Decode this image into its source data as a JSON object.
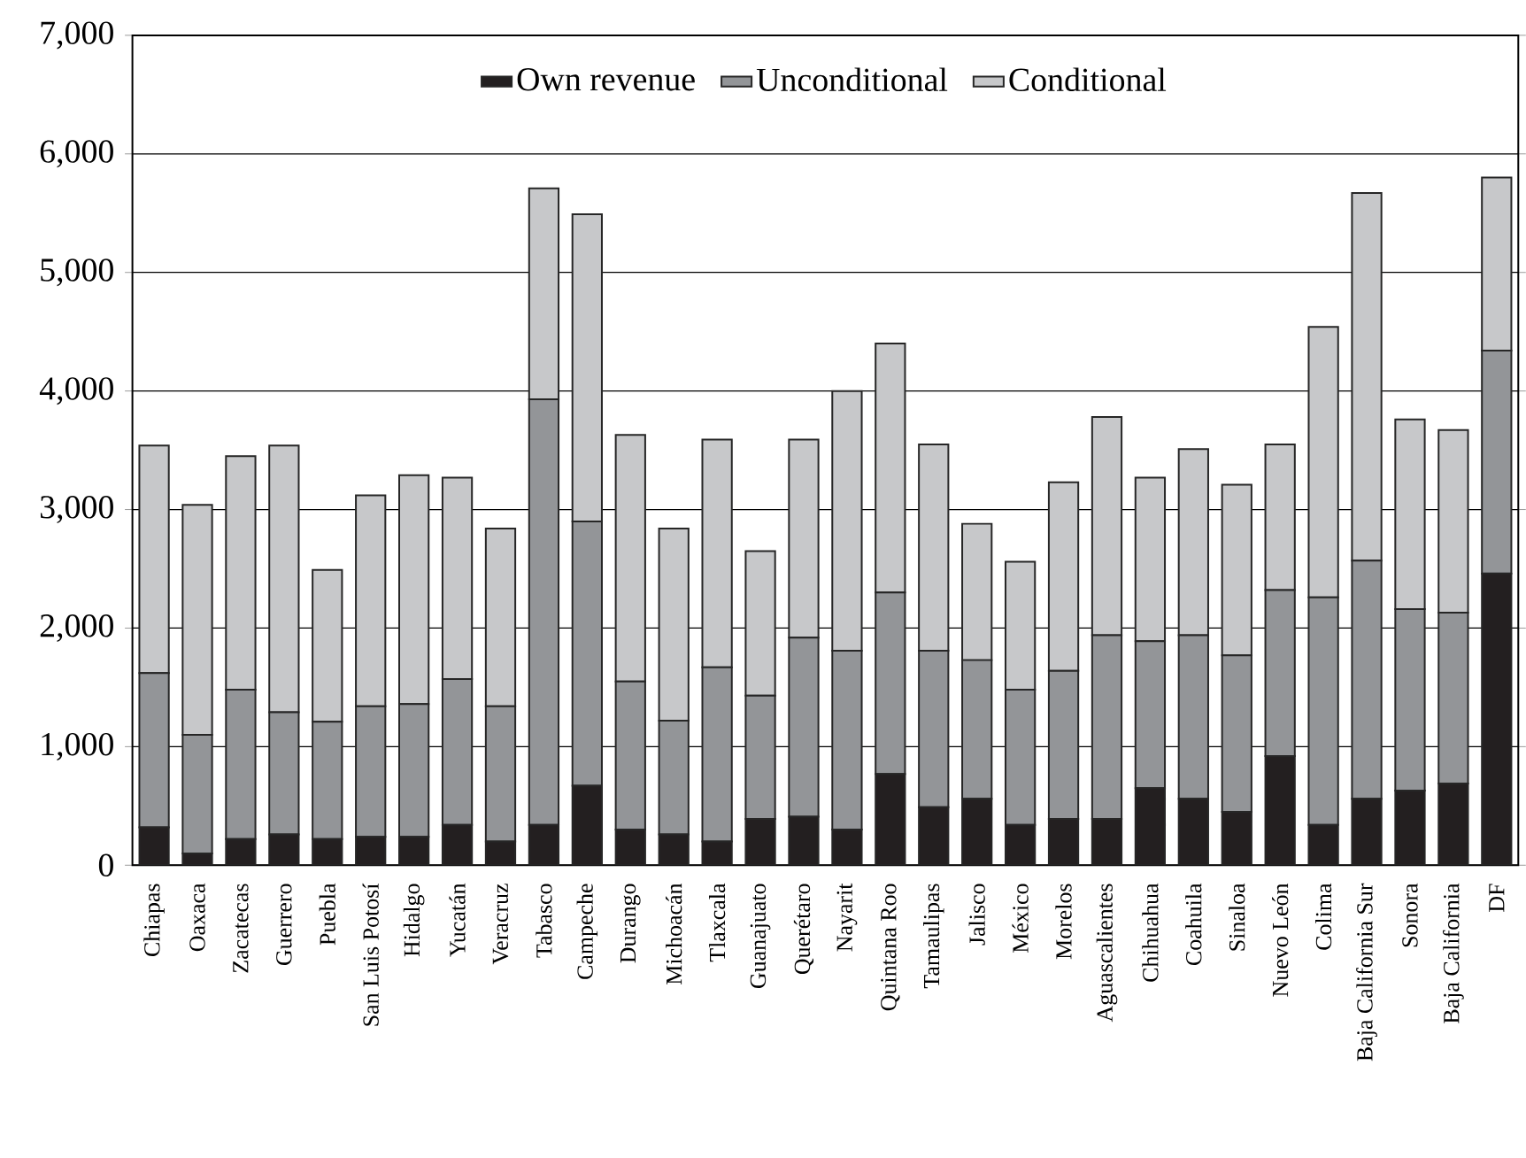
{
  "chart_data": {
    "type": "bar",
    "stacked": true,
    "grid": "y",
    "legend": "top",
    "categories": [
      "Chiapas",
      "Oaxaca",
      "Zacatecas",
      "Guerrero",
      "Puebla",
      "San Luis Potosí",
      "Hidalgo",
      "Yucatán",
      "Veracruz",
      "Tabasco",
      "Campeche",
      "Durango",
      "Michoacán",
      "Tlaxcala",
      "Guanajuato",
      "Querétaro",
      "Nayarit",
      "Quintana Roo",
      "Tamaulipas",
      "Jalisco",
      "México",
      "Morelos",
      "Aguascalientes",
      "Chihuahua",
      "Coahuila",
      "Sinaloa",
      "Nuevo León",
      "Colima",
      "Baja California Sur",
      "Sonora",
      "Baja California",
      "DF"
    ],
    "series": [
      {
        "name": "Own revenue",
        "color": "#231f20",
        "values": [
          320,
          100,
          220,
          260,
          220,
          240,
          240,
          340,
          200,
          340,
          670,
          300,
          260,
          200,
          390,
          410,
          300,
          770,
          490,
          560,
          340,
          390,
          390,
          650,
          560,
          450,
          920,
          340,
          560,
          630,
          690,
          2460
        ]
      },
      {
        "name": "Unconditional",
        "color": "#939598",
        "values": [
          1300,
          1000,
          1260,
          1030,
          990,
          1100,
          1120,
          1230,
          1140,
          3590,
          2230,
          1250,
          960,
          1470,
          1040,
          1510,
          1510,
          1530,
          1320,
          1170,
          1140,
          1250,
          1550,
          1240,
          1380,
          1320,
          1400,
          1920,
          2010,
          1530,
          1440,
          1880
        ]
      },
      {
        "name": "Conditional",
        "color": "#c7c8ca",
        "values": [
          1920,
          1940,
          1970,
          2250,
          1280,
          1780,
          1930,
          1700,
          1500,
          1780,
          2590,
          2080,
          1620,
          1920,
          1220,
          1670,
          2190,
          2100,
          1740,
          1150,
          1080,
          1590,
          1840,
          1380,
          1570,
          1440,
          1230,
          2280,
          3100,
          1600,
          1540,
          1460
        ]
      }
    ],
    "ylim": [
      0,
      7000
    ],
    "yticks": [
      {
        "value": 0,
        "label": "0"
      },
      {
        "value": 1000,
        "label": "1,000"
      },
      {
        "value": 2000,
        "label": "2,000"
      },
      {
        "value": 3000,
        "label": "3,000"
      },
      {
        "value": 4000,
        "label": "4,000"
      },
      {
        "value": 5000,
        "label": "5,000"
      },
      {
        "value": 6000,
        "label": "6,000"
      },
      {
        "value": 7000,
        "label": "7,000"
      }
    ]
  }
}
